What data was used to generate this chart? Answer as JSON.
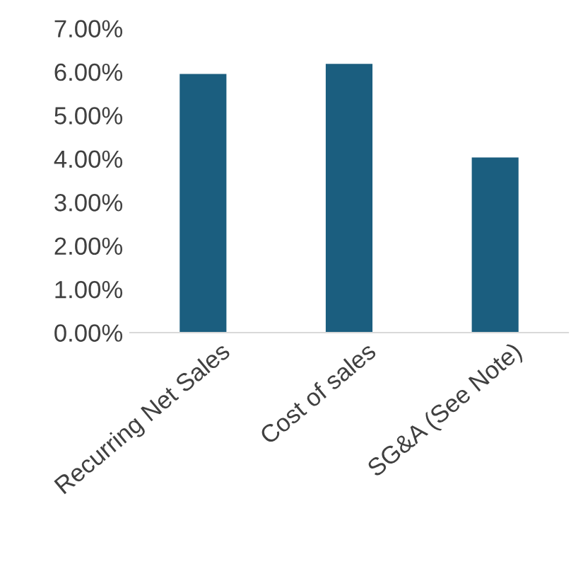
{
  "chart_data": {
    "type": "bar",
    "categories": [
      "Recurring Net Sales",
      "Cost of sales",
      "SG&A (See Note)"
    ],
    "values": [
      5.95,
      6.18,
      4.03
    ],
    "color": "#1b5e7f",
    "ylim": [
      0,
      7
    ],
    "yticks": [
      {
        "value": 0,
        "label": "0.00%"
      },
      {
        "value": 1,
        "label": "1.00%"
      },
      {
        "value": 2,
        "label": "2.00%"
      },
      {
        "value": 3,
        "label": "3.00%"
      },
      {
        "value": 4,
        "label": "4.00%"
      },
      {
        "value": 5,
        "label": "5.00%"
      },
      {
        "value": 6,
        "label": "6.00%"
      },
      {
        "value": 7,
        "label": "7.00%"
      }
    ],
    "grid": false
  }
}
